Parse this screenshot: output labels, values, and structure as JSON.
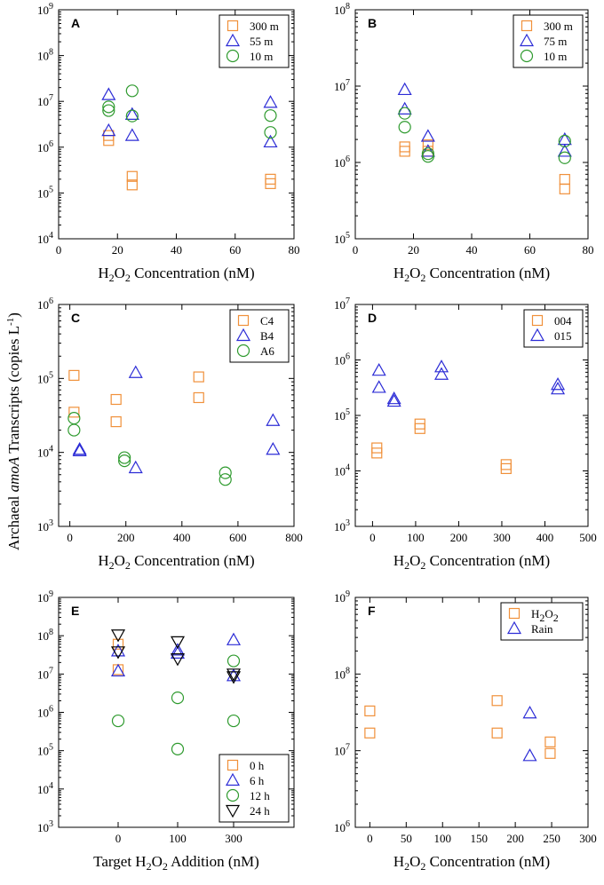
{
  "figure": {
    "shared_ylabel_pre": "Archaeal ",
    "shared_ylabel_italic": "amoA",
    "shared_ylabel_post": " Transcripts (copies L",
    "shared_ylabel_sup": "-1",
    "shared_ylabel_close": ")"
  },
  "colors": {
    "orange": "#f0903a",
    "blue": "#2c2cd6",
    "green": "#2e9a2e",
    "black": "#000000"
  },
  "chart_data": [
    {
      "panel": "A",
      "type": "scatter",
      "yscale": "log",
      "xlim": [
        0,
        80
      ],
      "xticks": [
        0,
        20,
        40,
        60,
        80
      ],
      "yexp": [
        4,
        9
      ],
      "xlabel_parts": [
        "H",
        "2",
        "O",
        "2",
        " Concentration (nM)"
      ],
      "legend_position": "top-right",
      "series": [
        {
          "name": "300 m",
          "marker": "square",
          "color": "orange",
          "x": [
            17,
            17,
            25,
            25,
            72,
            72
          ],
          "y": [
            1400000,
            1800000,
            150000,
            230000,
            160000,
            200000
          ]
        },
        {
          "name": "55 m",
          "marker": "triangle",
          "color": "blue",
          "x": [
            17,
            17,
            25,
            25,
            72,
            72
          ],
          "y": [
            2300000,
            14000000,
            1800000,
            5200000,
            1300000,
            9500000
          ]
        },
        {
          "name": "10 m",
          "marker": "circle",
          "color": "green",
          "x": [
            17,
            17,
            25,
            25,
            72,
            72
          ],
          "y": [
            6300000,
            7600000,
            4800000,
            17000000,
            2100000,
            4900000
          ]
        }
      ]
    },
    {
      "panel": "B",
      "type": "scatter",
      "yscale": "log",
      "xlim": [
        0,
        80
      ],
      "xticks": [
        0,
        20,
        40,
        60,
        80
      ],
      "yexp": [
        5,
        8
      ],
      "xlabel_parts": [
        "H",
        "2",
        "O",
        "2",
        " Concentration (nM)"
      ],
      "legend_position": "top-right",
      "series": [
        {
          "name": "300 m",
          "marker": "square",
          "color": "orange",
          "x": [
            17,
            17,
            25,
            25,
            72,
            72
          ],
          "y": [
            1400000,
            1600000,
            1400000,
            1700000,
            450000,
            600000
          ]
        },
        {
          "name": "75 m",
          "marker": "triangle",
          "color": "blue",
          "x": [
            17,
            17,
            25,
            25,
            72,
            72
          ],
          "y": [
            5000000,
            9000000,
            1400000,
            2200000,
            1400000,
            2000000
          ]
        },
        {
          "name": "10 m",
          "marker": "circle",
          "color": "green",
          "x": [
            17,
            17,
            25,
            25,
            72,
            72
          ],
          "y": [
            2900000,
            4400000,
            1200000,
            1300000,
            1150000,
            1900000
          ]
        }
      ]
    },
    {
      "panel": "C",
      "type": "scatter",
      "yscale": "log",
      "xlim": [
        -40,
        800
      ],
      "xticks": [
        0,
        200,
        400,
        600,
        800
      ],
      "yexp": [
        3,
        6
      ],
      "xlabel_parts": [
        "H",
        "2",
        "O",
        "2",
        " Concentration (nM)"
      ],
      "legend_position": "top-right",
      "series": [
        {
          "name": "C4",
          "marker": "square",
          "color": "orange",
          "x": [
            15,
            15,
            165,
            165,
            460,
            460
          ],
          "y": [
            35000,
            110000,
            26000,
            52000,
            55000,
            105000
          ]
        },
        {
          "name": "B4",
          "marker": "triangle",
          "color": "blue",
          "x": [
            35,
            35,
            235,
            235,
            725,
            725
          ],
          "y": [
            10500,
            11000,
            6200,
            120000,
            11000,
            27000
          ]
        },
        {
          "name": "A6",
          "marker": "circle",
          "color": "green",
          "x": [
            15,
            15,
            195,
            195,
            555,
            555
          ],
          "y": [
            20000,
            29000,
            7700,
            8500,
            4300,
            5300
          ]
        }
      ]
    },
    {
      "panel": "D",
      "type": "scatter",
      "yscale": "log",
      "xlim": [
        -40,
        500
      ],
      "xticks": [
        0,
        100,
        200,
        300,
        400,
        500
      ],
      "yexp": [
        3,
        7
      ],
      "xlabel_parts": [
        "H",
        "2",
        "O",
        "2",
        " Concentration (nM)"
      ],
      "legend_position": "top-right",
      "series": [
        {
          "name": "004",
          "marker": "square",
          "color": "orange",
          "x": [
            10,
            10,
            110,
            110,
            310,
            310
          ],
          "y": [
            21000,
            26000,
            58000,
            70000,
            11000,
            13000
          ]
        },
        {
          "name": "015",
          "marker": "triangle",
          "color": "blue",
          "x": [
            15,
            15,
            50,
            50,
            160,
            160,
            430,
            430
          ],
          "y": [
            320000,
            650000,
            180000,
            200000,
            550000,
            750000,
            300000,
            360000
          ]
        }
      ]
    },
    {
      "panel": "E",
      "type": "scatter",
      "yscale": "log",
      "xcategories": [
        "0",
        "100",
        "300"
      ],
      "yexp": [
        3,
        9
      ],
      "xlabel_parts": [
        "Target H",
        "2",
        "O",
        "2",
        " Addition (nM)"
      ],
      "legend_position": "bottom-right",
      "series": [
        {
          "name": "0 h",
          "marker": "square",
          "color": "orange",
          "xi": [
            0,
            0
          ],
          "y": [
            13000000,
            60000000
          ]
        },
        {
          "name": "6 h",
          "marker": "triangle",
          "color": "blue",
          "xi": [
            0,
            0,
            1,
            1,
            2,
            2
          ],
          "y": [
            12000000,
            40000000,
            35000000,
            42000000,
            9000000,
            78000000
          ]
        },
        {
          "name": "12 h",
          "marker": "circle",
          "color": "green",
          "xi": [
            0,
            1,
            1,
            2,
            2
          ],
          "y": [
            600000,
            110000,
            2400000,
            600000,
            22000000
          ]
        },
        {
          "name": "24 h",
          "marker": "triangledown",
          "color": "black",
          "xi": [
            0,
            0,
            1,
            1,
            2,
            2
          ],
          "y": [
            38000000,
            105000000,
            25000000,
            70000000,
            8500000,
            10000000
          ]
        }
      ]
    },
    {
      "panel": "F",
      "type": "scatter",
      "yscale": "log",
      "xlim": [
        -20,
        300
      ],
      "xticks": [
        0,
        50,
        100,
        150,
        200,
        250,
        300
      ],
      "yexp": [
        6,
        9
      ],
      "xlabel_parts": [
        "H",
        "2",
        "O",
        "2",
        " Concentration (nM)"
      ],
      "legend_position": "top-right",
      "series": [
        {
          "name": "H2O2",
          "name_parts": [
            "H",
            "2",
            "O",
            "2"
          ],
          "marker": "square",
          "color": "orange",
          "x": [
            0,
            0,
            175,
            175,
            248,
            248
          ],
          "y": [
            17000000,
            33000000,
            17000000,
            45000000,
            9200000,
            13000000
          ]
        },
        {
          "name": "Rain",
          "marker": "triangle",
          "color": "blue",
          "x": [
            220,
            220
          ],
          "y": [
            8600000,
            31000000
          ]
        }
      ]
    }
  ]
}
